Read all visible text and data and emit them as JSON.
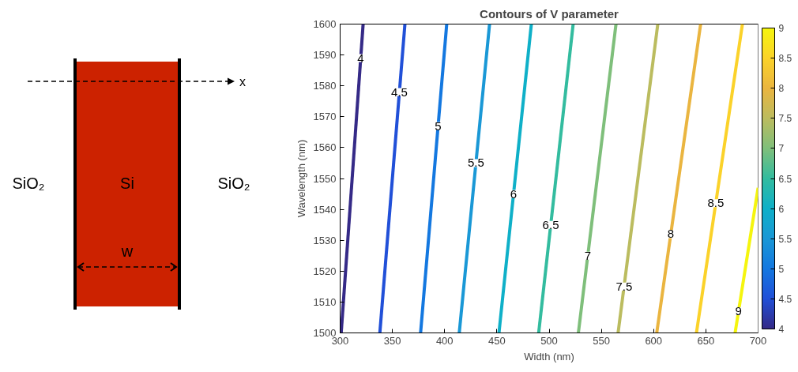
{
  "chart_data": [
    {
      "type": "other",
      "annotations": [
        "x",
        "SiO₂",
        "Si",
        "SiO₂",
        "w"
      ]
    },
    {
      "type": "line",
      "title": "Contours of V parameter",
      "xlabel": "Width (nm)",
      "ylabel": "Wavelength (nm)",
      "xlim": [
        300,
        700
      ],
      "ylim": [
        1500,
        1600
      ],
      "xticks": [
        300,
        350,
        400,
        450,
        500,
        550,
        600,
        650,
        700
      ],
      "yticks": [
        1500,
        1510,
        1520,
        1530,
        1540,
        1550,
        1560,
        1570,
        1580,
        1590,
        1600
      ],
      "clim": [
        4,
        9
      ],
      "cticks": [
        4,
        4.5,
        5,
        5.5,
        6,
        6.5,
        7,
        7.5,
        8,
        8.5,
        9
      ],
      "grid": false,
      "series": [
        {
          "name": "4",
          "color": "#352a87",
          "x": [
            301,
            322
          ],
          "values": [
            1500,
            1600
          ]
        },
        {
          "name": "4.5",
          "color": "#2150d8",
          "x": [
            338,
            362
          ],
          "values": [
            1500,
            1600
          ]
        },
        {
          "name": "5",
          "color": "#1478e0",
          "x": [
            377,
            402
          ],
          "values": [
            1500,
            1600
          ]
        },
        {
          "name": "5.5",
          "color": "#1a98d6",
          "x": [
            414,
            443
          ],
          "values": [
            1500,
            1600
          ]
        },
        {
          "name": "6",
          "color": "#0fb0c8",
          "x": [
            452,
            483
          ],
          "values": [
            1500,
            1600
          ]
        },
        {
          "name": "6.5",
          "color": "#33bc9f",
          "x": [
            490,
            523
          ],
          "values": [
            1500,
            1600
          ]
        },
        {
          "name": "7",
          "color": "#7fbf7b",
          "x": [
            528,
            564
          ],
          "values": [
            1500,
            1600
          ]
        },
        {
          "name": "7.5",
          "color": "#bbbc5f",
          "x": [
            566,
            604
          ],
          "values": [
            1500,
            1600
          ]
        },
        {
          "name": "8",
          "color": "#eab540",
          "x": [
            603,
            645
          ],
          "values": [
            1500,
            1600
          ]
        },
        {
          "name": "8.5",
          "color": "#fbd22a",
          "x": [
            641,
            685
          ],
          "values": [
            1500,
            1600
          ]
        },
        {
          "name": "9",
          "color": "#f5f50e",
          "x": [
            678,
            700
          ],
          "values": [
            1500,
            1547
          ]
        }
      ]
    }
  ]
}
